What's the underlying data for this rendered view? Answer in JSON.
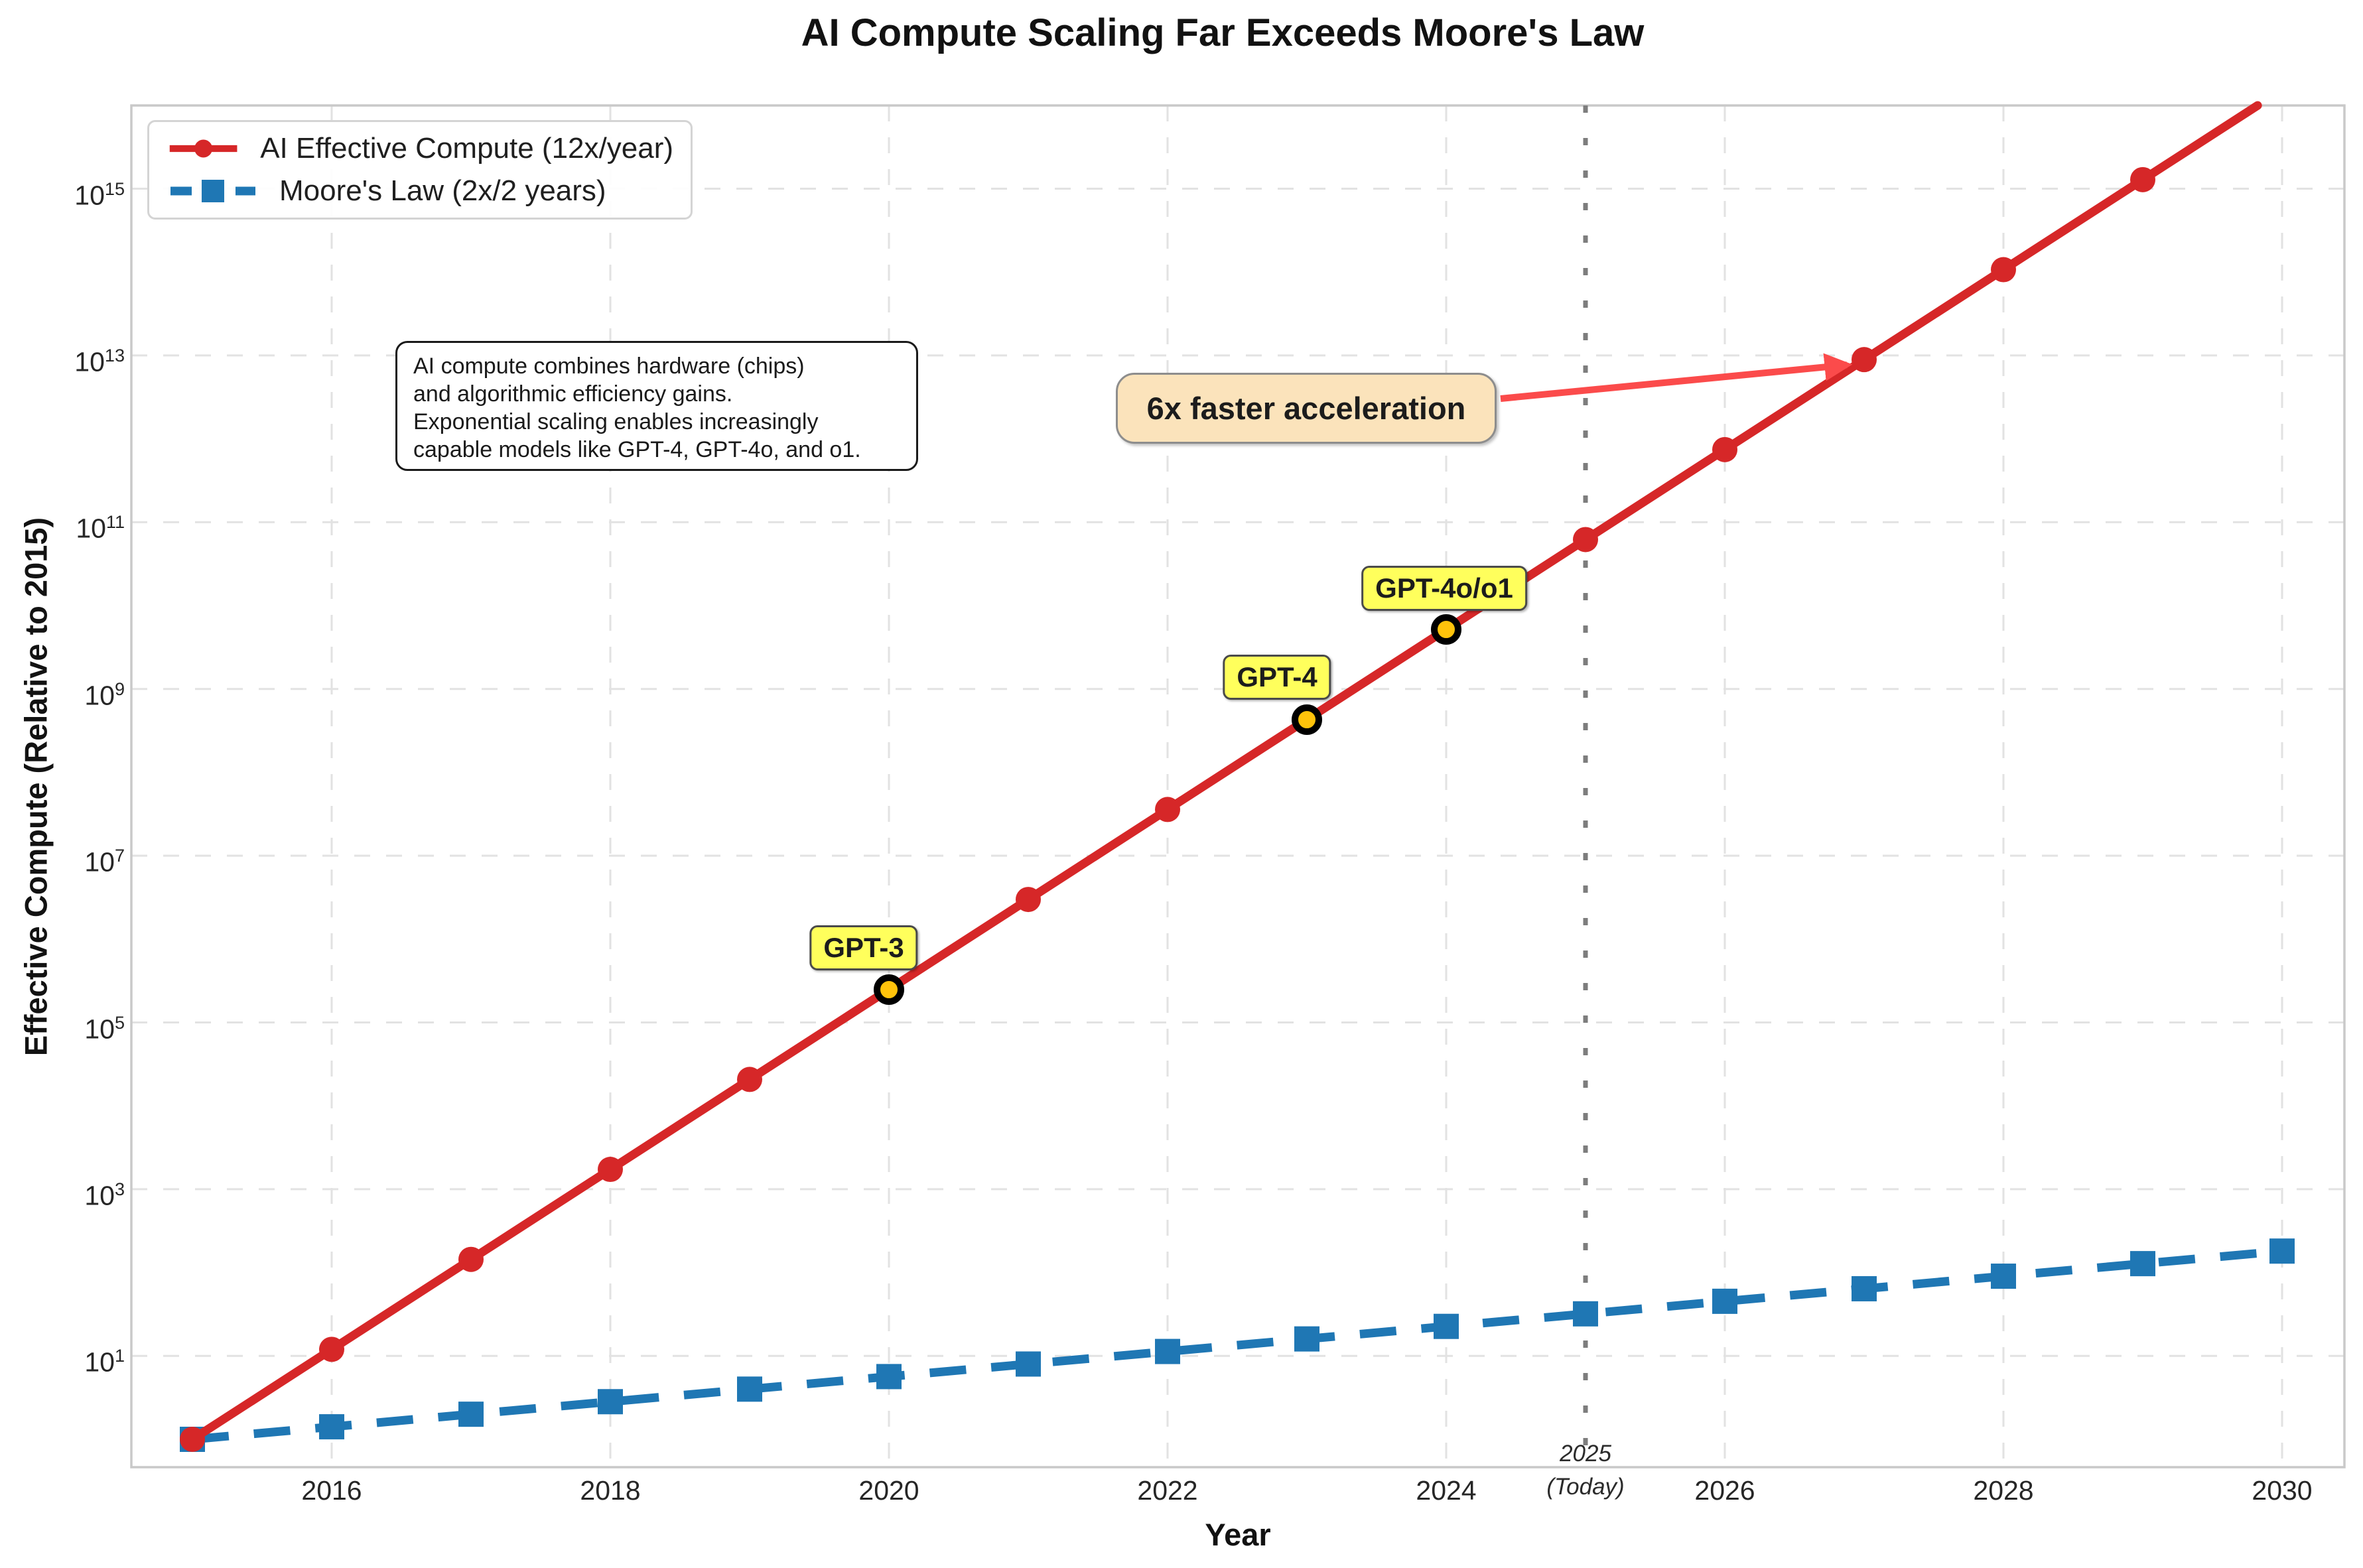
{
  "title": "AI Compute Scaling Far Exceeds Moore's Law",
  "axes": {
    "xlabel": "Year",
    "ylabel": "Effective Compute (Relative to 2015)",
    "xticks": [
      2016,
      2018,
      2020,
      2022,
      2024,
      2026,
      2028,
      2030
    ],
    "ytick_base": "10",
    "ytick_exponents": [
      1,
      3,
      5,
      7,
      9,
      11,
      13,
      15
    ]
  },
  "legend": {
    "items": [
      {
        "label": "AI Effective Compute (12x/year)",
        "color": "#d62728",
        "line_style": "solid",
        "marker": "circle"
      },
      {
        "label": "Moore's Law (2x/2 years)",
        "color": "#1f77b4",
        "line_style": "dashed",
        "marker": "square"
      }
    ]
  },
  "annotations": {
    "note_box": {
      "lines": [
        "AI compute combines hardware (chips)",
        "and algorithmic efficiency gains.",
        "Exponential scaling enables increasingly",
        "capable models like GPT-4, GPT-4o, and o1."
      ]
    },
    "acceleration_label": {
      "text": "6x faster acceleration",
      "fill": "#fbe3bb",
      "arrow_color": "#fb4b4b",
      "arrow_target_year": 2027
    },
    "today_line": {
      "year": 2025,
      "label_line1": "2025",
      "label_line2": "(Today)",
      "color": "#7d7d7d"
    },
    "models": [
      {
        "name": "GPT-3",
        "year": 2020,
        "value": 248832
      },
      {
        "name": "GPT-4",
        "year": 2023,
        "value": 429981696
      },
      {
        "name": "GPT-4o/o1",
        "year": 2024,
        "value": 5159780352
      }
    ],
    "model_marker_color": "#ffc30b"
  },
  "chart_data": {
    "type": "line",
    "yscale": "log",
    "grid": true,
    "legend_position": "upper left",
    "xlim": [
      2014.56,
      2030.45
    ],
    "ylim_exponents": [
      -0.33,
      16.0
    ],
    "x": [
      2015,
      2016,
      2017,
      2018,
      2019,
      2020,
      2021,
      2022,
      2023,
      2024,
      2025,
      2026,
      2027,
      2028,
      2029,
      2030
    ],
    "series": [
      {
        "name": "AI Effective Compute (12x/year)",
        "growth_rate": "12x per year",
        "color": "#d62728",
        "values": [
          1,
          12,
          144,
          1728,
          20736,
          248832,
          2985984,
          35831808,
          429981696,
          5159780352,
          61917364224,
          743008370688,
          8916100448256,
          106993205379072,
          1283918464548864,
          15407021574586368
        ]
      },
      {
        "name": "Moore's Law (2x/2 years)",
        "growth_rate": "2x per 2 years",
        "color": "#1f77b4",
        "values": [
          1,
          1.414,
          2,
          2.828,
          4,
          5.657,
          8,
          11.314,
          16,
          22.627,
          32,
          45.255,
          64,
          90.51,
          128,
          181.019
        ]
      }
    ]
  }
}
